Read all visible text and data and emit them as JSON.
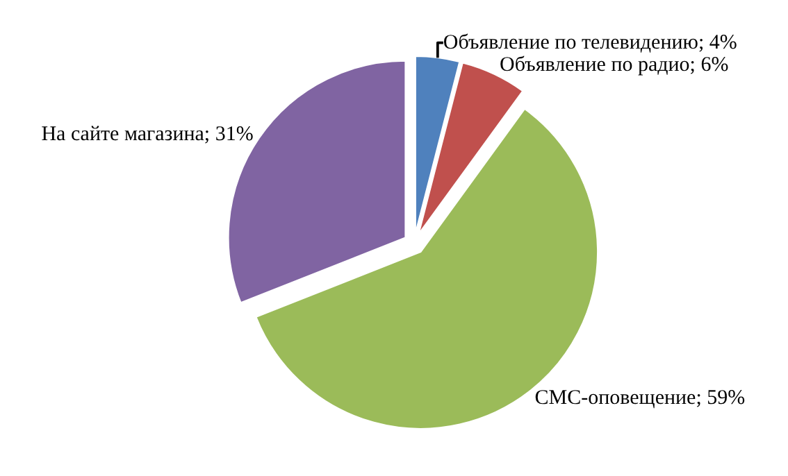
{
  "chart_data": {
    "type": "pie",
    "categories": [
      "Объявление по телевидению",
      "Объявление по радио",
      "СМС-оповещение",
      "На сайте магазина"
    ],
    "values": [
      4,
      6,
      59,
      31
    ],
    "value_labels": [
      "4%",
      "6%",
      "59%",
      "31%"
    ],
    "colors": [
      "#4f81bd",
      "#c0504d",
      "#9bbb59",
      "#8064a2"
    ],
    "legend": false
  }
}
